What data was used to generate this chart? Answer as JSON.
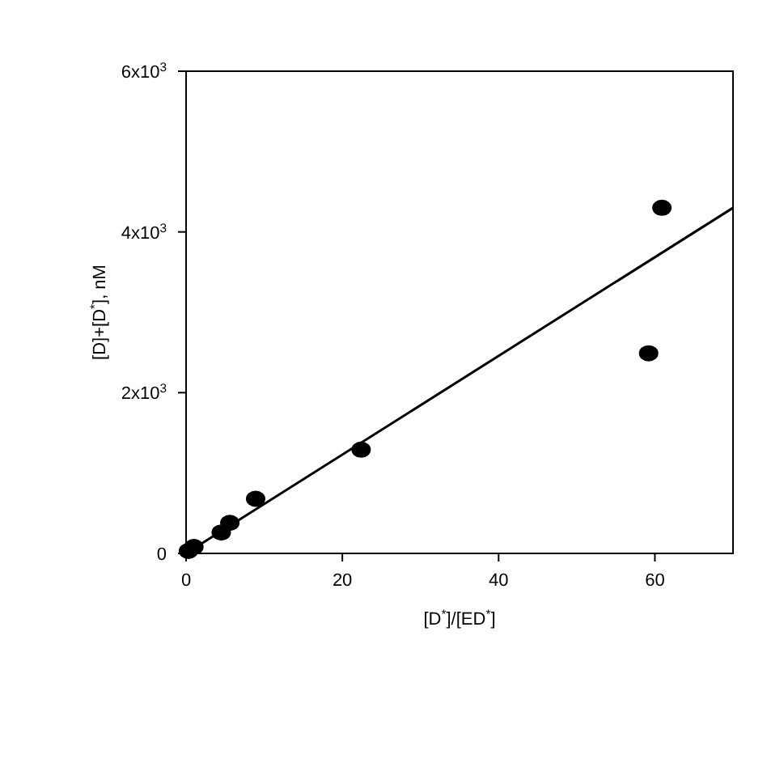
{
  "chart_data": {
    "type": "scatter",
    "xlabel": "[D$^{*}$]/[ED$^{*}$]",
    "ylabel": "[D]+[D$^{*}$], nM",
    "xlim": [
      0,
      70
    ],
    "ylim": [
      0,
      6000
    ],
    "xticks": [
      0,
      20,
      40,
      60
    ],
    "yticks": [
      {
        "value": 0,
        "label": "0"
      },
      {
        "value": 2000,
        "label": "2x10$^{3}$"
      },
      {
        "value": 4000,
        "label": "4x10$^{3}$"
      },
      {
        "value": 6000,
        "label": "6x10$^{3}$"
      }
    ],
    "grid": false,
    "marker": "circle",
    "series": [
      {
        "color": "#000000",
        "x": [
          0.3,
          1,
          4.5,
          5.6,
          8.9,
          22.4,
          59.2,
          60.9
        ],
        "values": [
          30,
          80,
          260,
          380,
          680,
          1290,
          2490,
          4300
        ]
      },
      {
        "type": "line",
        "color": "#000000",
        "marker": "none",
        "line_style": "solid",
        "x": [
          0,
          70
        ],
        "values": [
          0,
          4300
        ]
      }
    ]
  }
}
